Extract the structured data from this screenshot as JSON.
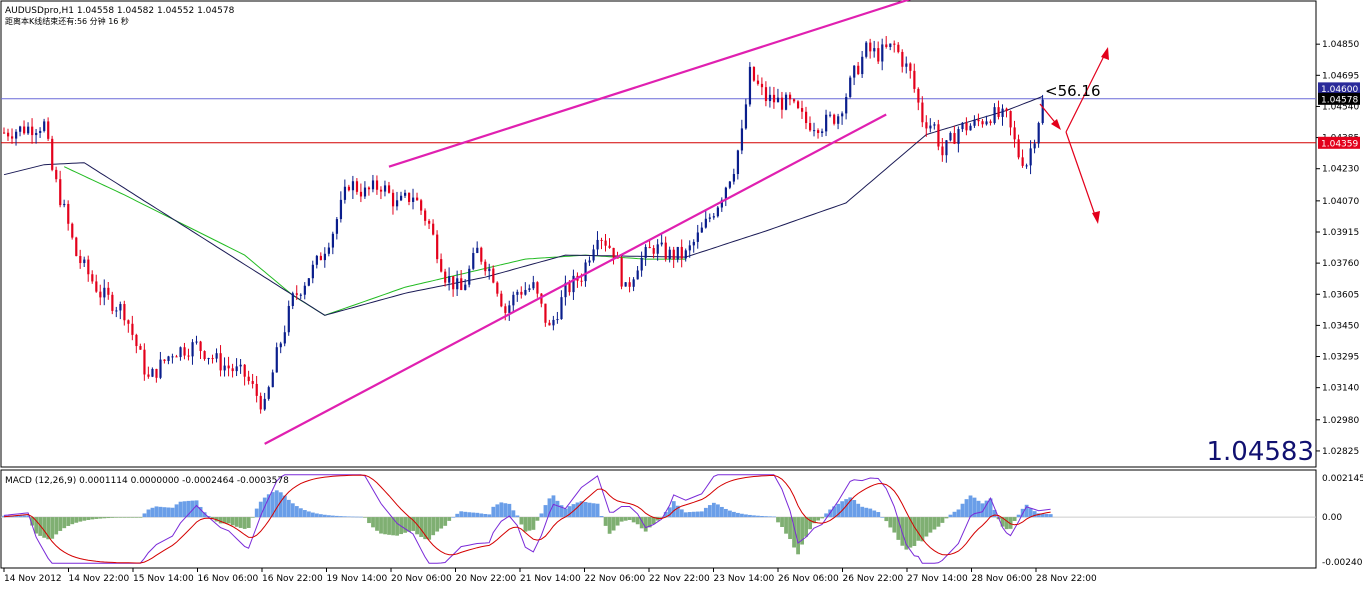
{
  "header": {
    "symbol_line": "AUDUSDpro,H1  1.04558 1.04582 1.04552 1.04578",
    "timer_line": "距离本K线结束还有:56 分钟 16 秒"
  },
  "big_price": "1.04583",
  "annotation": "<56.16",
  "badges": {
    "current_price": "1.04578",
    "red_level": "1.04359",
    "partial_top": "1.04600"
  },
  "macd": {
    "label": "MACD (12,26,9) 0.0001114 0.0000000 -0.0002464 -0.0003578",
    "axis_labels": [
      "0.002145",
      "0.00",
      "-0.00240"
    ],
    "ylim": [
      -0.0026,
      0.0024
    ]
  },
  "colors": {
    "bull": "#0a1e8c",
    "bear": "#e3001b",
    "channel": "#e020b0",
    "ma_green": "#22bb22",
    "ma_navy": "#1a1a55",
    "red_level": "#d40000",
    "blue_level": "#6a6ad8",
    "macd_hist_pos": "#6a9ee8",
    "macd_hist_neg": "#7faf72",
    "big_price": "#101070"
  },
  "chart_data": {
    "type": "candlestick",
    "ylim": [
      1.0275,
      1.0505
    ],
    "y_ticks": [
      "1.04850",
      "1.04695",
      "1.04540",
      "1.04385",
      "1.04230",
      "1.04070",
      "1.03915",
      "1.03760",
      "1.03605",
      "1.03450",
      "1.03295",
      "1.03140",
      "1.02980",
      "1.02825"
    ],
    "x_labels": [
      "14 Nov 2012",
      "14 Nov 22:00",
      "15 Nov 14:00",
      "16 Nov 06:00",
      "16 Nov 22:00",
      "19 Nov 14:00",
      "20 Nov 06:00",
      "20 Nov 22:00",
      "21 Nov 14:00",
      "22 Nov 06:00",
      "22 Nov 22:00",
      "23 Nov 14:00",
      "26 Nov 06:00",
      "26 Nov 22:00",
      "27 Nov 14:00",
      "28 Nov 06:00",
      "28 Nov 22:00"
    ],
    "bar_count": 262,
    "horizontal_levels": [
      {
        "value": 1.04359,
        "color": "red"
      },
      {
        "value": 1.04578,
        "color": "blue"
      }
    ],
    "channel_lines": [
      {
        "from": [
          65,
          1.0286
        ],
        "to": [
          220,
          1.045
        ]
      },
      {
        "from": [
          96,
          1.0424
        ],
        "to": [
          230,
          1.051
        ]
      }
    ],
    "close_anchors": [
      [
        0,
        1.0441
      ],
      [
        10,
        1.0445
      ],
      [
        12,
        1.0422
      ],
      [
        15,
        1.0402
      ],
      [
        18,
        1.038
      ],
      [
        24,
        1.0361
      ],
      [
        30,
        1.0352
      ],
      [
        36,
        1.0318
      ],
      [
        42,
        1.0332
      ],
      [
        48,
        1.0335
      ],
      [
        54,
        1.0326
      ],
      [
        60,
        1.032
      ],
      [
        65,
        1.0304
      ],
      [
        68,
        1.033
      ],
      [
        72,
        1.0358
      ],
      [
        78,
        1.0376
      ],
      [
        82,
        1.0392
      ],
      [
        86,
        1.0416
      ],
      [
        90,
        1.0411
      ],
      [
        94,
        1.0415
      ],
      [
        98,
        1.0405
      ],
      [
        102,
        1.041
      ],
      [
        106,
        1.0395
      ],
      [
        110,
        1.037
      ],
      [
        114,
        1.0362
      ],
      [
        118,
        1.0382
      ],
      [
        122,
        1.037
      ],
      [
        125,
        1.0352
      ],
      [
        128,
        1.0362
      ],
      [
        132,
        1.0364
      ],
      [
        136,
        1.0343
      ],
      [
        140,
        1.0362
      ],
      [
        144,
        1.037
      ],
      [
        148,
        1.0392
      ],
      [
        152,
        1.0382
      ],
      [
        155,
        1.0362
      ],
      [
        158,
        1.0376
      ],
      [
        162,
        1.0384
      ],
      [
        166,
        1.038
      ],
      [
        170,
        1.038
      ],
      [
        174,
        1.0392
      ],
      [
        178,
        1.0406
      ],
      [
        182,
        1.0424
      ],
      [
        184,
        1.044
      ],
      [
        186,
        1.047
      ],
      [
        190,
        1.0458
      ],
      [
        196,
        1.0455
      ],
      [
        200,
        1.0446
      ],
      [
        204,
        1.0445
      ],
      [
        208,
        1.045
      ],
      [
        212,
        1.047
      ],
      [
        215,
        1.0482
      ],
      [
        218,
        1.048
      ],
      [
        222,
        1.0484
      ],
      [
        226,
        1.047
      ],
      [
        229,
        1.0448
      ],
      [
        232,
        1.0444
      ],
      [
        234,
        1.043
      ],
      [
        238,
        1.0443
      ],
      [
        242,
        1.0445
      ],
      [
        246,
        1.045
      ],
      [
        250,
        1.0448
      ],
      [
        253,
        1.043
      ],
      [
        255,
        1.0426
      ],
      [
        257,
        1.044
      ],
      [
        259,
        1.0456
      ]
    ],
    "ma_green_anchors": [
      [
        15,
        1.0424
      ],
      [
        30,
        1.041
      ],
      [
        60,
        1.038
      ],
      [
        72,
        1.036
      ],
      [
        80,
        1.035
      ],
      [
        100,
        1.0364
      ],
      [
        130,
        1.0378
      ],
      [
        145,
        1.038
      ],
      [
        160,
        1.0378
      ],
      [
        170,
        1.0378
      ]
    ],
    "ma_navy_anchors": [
      [
        0,
        1.042
      ],
      [
        10,
        1.0425
      ],
      [
        20,
        1.0426
      ],
      [
        80,
        1.035
      ],
      [
        100,
        1.0361
      ],
      [
        120,
        1.0369
      ],
      [
        140,
        1.038
      ],
      [
        170,
        1.0379
      ],
      [
        190,
        1.0392
      ],
      [
        210,
        1.0406
      ],
      [
        230,
        1.044
      ],
      [
        250,
        1.0452
      ],
      [
        259,
        1.0459
      ]
    ]
  }
}
